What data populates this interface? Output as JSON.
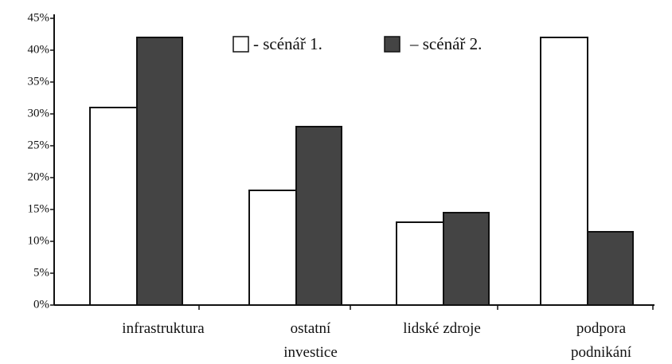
{
  "chart_data": {
    "type": "bar",
    "categories": [
      "infrastruktura",
      "ostatní\ninvestice",
      "lidské zdroje",
      "podpora podnikání"
    ],
    "series": [
      {
        "name": "- scénář 1.",
        "color": "#ffffff",
        "values": [
          31,
          18,
          13,
          42
        ]
      },
      {
        "name": "– scénář 2.",
        "color": "#444444",
        "values": [
          42,
          28,
          14.5,
          11.5
        ]
      }
    ],
    "ylim": [
      0,
      45
    ],
    "yticks": [
      {
        "value": 0,
        "label": "0%"
      },
      {
        "value": 5,
        "label": "5%"
      },
      {
        "value": 10,
        "label": "10%"
      },
      {
        "value": 15,
        "label": "15%"
      },
      {
        "value": 20,
        "label": "20%"
      },
      {
        "value": 25,
        "label": "25%"
      },
      {
        "value": 30,
        "label": "30%"
      },
      {
        "value": 35,
        "label": "35%"
      },
      {
        "value": 40,
        "label": "40%"
      },
      {
        "value": 45,
        "label": "45%"
      }
    ],
    "grid": false
  }
}
